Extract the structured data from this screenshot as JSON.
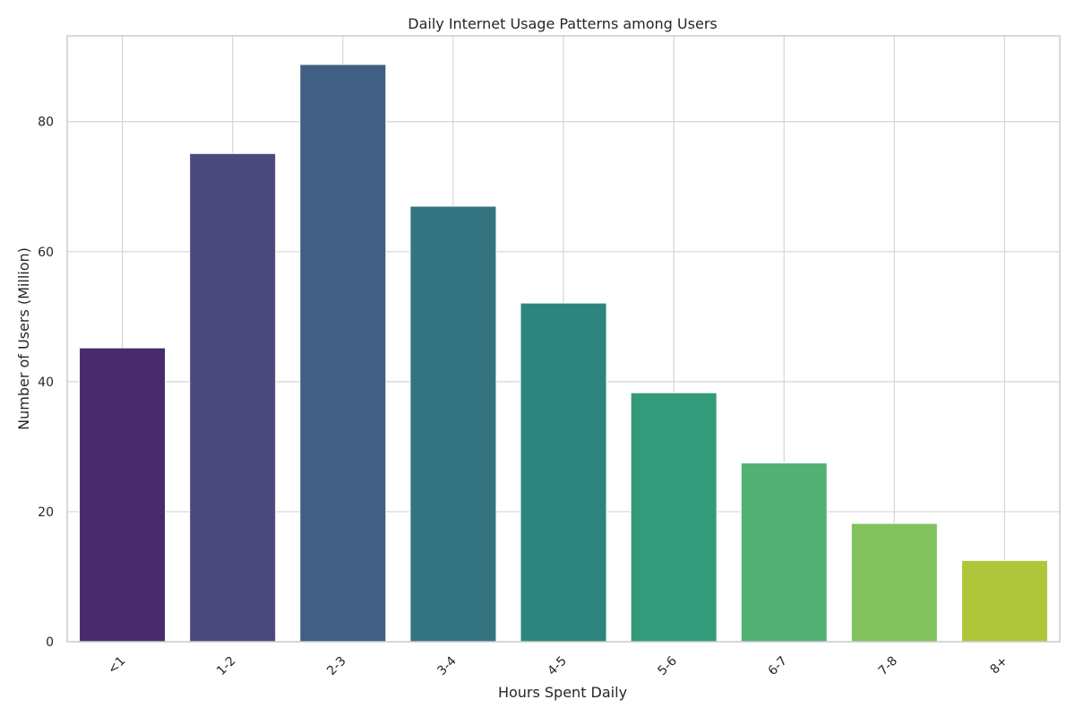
{
  "chart_data": {
    "type": "bar",
    "title": "Daily Internet Usage Patterns among Users",
    "xlabel": "Hours Spent Daily",
    "ylabel": "Number of Users (Million)",
    "categories": [
      "<1",
      "1-2",
      "2-3",
      "3-4",
      "4-5",
      "5-6",
      "6-7",
      "7-8",
      "8+"
    ],
    "values": [
      45.2,
      75.1,
      88.8,
      67.0,
      52.1,
      38.3,
      27.5,
      18.2,
      12.5
    ],
    "ylim": [
      0,
      93.2
    ],
    "yticks": [
      0,
      20,
      40,
      60,
      80
    ],
    "grid": true,
    "legend": "none",
    "colors": [
      "#482b6b",
      "#4a4b7c",
      "#405f82",
      "#347480",
      "#2e847e",
      "#339a7a",
      "#52b074",
      "#81c25f",
      "#afc63b"
    ]
  }
}
